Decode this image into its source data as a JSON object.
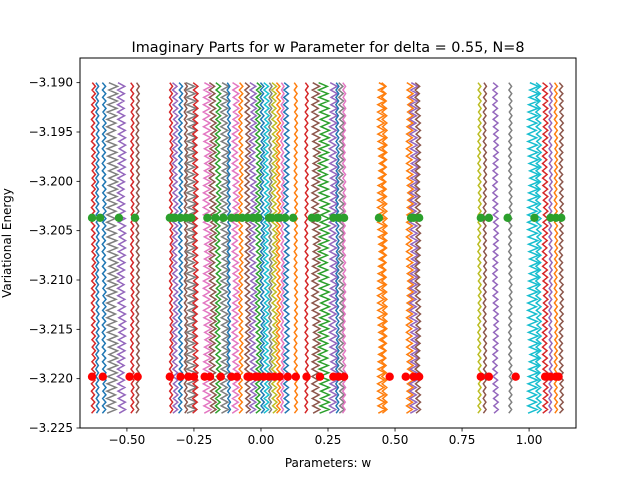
{
  "chart_data": {
    "type": "line",
    "title": "Imaginary Parts for w Parameter for delta = 0.55, N=8",
    "xlabel": "Parameters: w",
    "ylabel": "Variational Energy",
    "xlim": [
      -0.675,
      1.175
    ],
    "ylim": [
      -3.225,
      -3.1875
    ],
    "x_ticks": [
      -0.5,
      -0.25,
      0.0,
      0.25,
      0.5,
      0.75,
      1.0
    ],
    "x_tick_labels": [
      "−0.50",
      "−0.25",
      "0.00",
      "0.25",
      "0.50",
      "0.75",
      "1.00"
    ],
    "y_ticks": [
      -3.19,
      -3.195,
      -3.2,
      -3.205,
      -3.21,
      -3.215,
      -3.22,
      -3.225
    ],
    "y_tick_labels": [
      "−3.190",
      "−3.195",
      "−3.200",
      "−3.205",
      "−3.210",
      "−3.215",
      "−3.220",
      "−3.225"
    ],
    "grid": false,
    "palette": [
      "#1f77b4",
      "#ff7f0e",
      "#2ca02c",
      "#d62728",
      "#9467bd",
      "#8c564b",
      "#e377c2",
      "#7f7f7f",
      "#bcbd22",
      "#17becf"
    ],
    "band_y_range": [
      -3.2235,
      -3.19
    ],
    "band_centers": [
      -0.625,
      -0.61,
      -0.585,
      -0.555,
      -0.52,
      -0.48,
      -0.46,
      -0.335,
      -0.32,
      -0.3,
      -0.28,
      -0.26,
      -0.245,
      -0.2,
      -0.18,
      -0.16,
      -0.135,
      -0.12,
      -0.095,
      -0.075,
      -0.05,
      -0.03,
      -0.01,
      0.005,
      0.02,
      0.035,
      0.05,
      0.065,
      0.08,
      0.095,
      0.13,
      0.17,
      0.205,
      0.235,
      0.27,
      0.285,
      0.3,
      0.31,
      0.45,
      0.46,
      0.555,
      0.57,
      0.585,
      0.815,
      0.835,
      0.875,
      0.93,
      1.015,
      1.035,
      1.06,
      1.08,
      1.1,
      1.12
    ],
    "band_widths": [
      0.015,
      0.012,
      0.014,
      0.04,
      0.03,
      0.012,
      0.012,
      0.012,
      0.02,
      0.015,
      0.012,
      0.04,
      0.02,
      0.03,
      0.025,
      0.02,
      0.03,
      0.012,
      0.025,
      0.015,
      0.02,
      0.025,
      0.02,
      0.015,
      0.02,
      0.012,
      0.02,
      0.015,
      0.012,
      0.02,
      0.012,
      0.012,
      0.03,
      0.04,
      0.03,
      0.012,
      0.02,
      0.012,
      0.03,
      0.02,
      0.025,
      0.03,
      0.02,
      0.012,
      0.012,
      0.02,
      0.012,
      0.04,
      0.02,
      0.02,
      0.012,
      0.012,
      0.015
    ],
    "band_colors": [
      "#d62728",
      "#1f77b4",
      "#1f77b4",
      "#7f7f7f",
      "#9467bd",
      "#d62728",
      "#8c564b",
      "#d62728",
      "#9467bd",
      "#1f77b4",
      "#8c564b",
      "#7f7f7f",
      "#d62728",
      "#e377c2",
      "#8c564b",
      "#2ca02c",
      "#7f7f7f",
      "#1f77b4",
      "#e377c2",
      "#ff7f0e",
      "#8c564b",
      "#9467bd",
      "#2ca02c",
      "#1f77b4",
      "#17becf",
      "#7f7f7f",
      "#bcbd22",
      "#ff7f0e",
      "#e377c2",
      "#1f77b4",
      "#ff7f0e",
      "#d62728",
      "#8c564b",
      "#2ca02c",
      "#9467bd",
      "#1f77b4",
      "#7f7f7f",
      "#e377c2",
      "#ff7f0e",
      "#ff7f0e",
      "#ff7f0e",
      "#9467bd",
      "#8c564b",
      "#bcbd22",
      "#8c564b",
      "#9467bd",
      "#7f7f7f",
      "#17becf",
      "#17becf",
      "#d62728",
      "#9467bd",
      "#ff7f0e",
      "#8c564b"
    ],
    "series": [
      {
        "color": "#2ca02c",
        "y": -3.2037,
        "x": [
          -0.63,
          -0.6,
          -0.53,
          -0.47,
          -0.34,
          -0.33,
          -0.32,
          -0.3,
          -0.28,
          -0.26,
          -0.2,
          -0.17,
          -0.14,
          -0.11,
          -0.09,
          -0.07,
          -0.05,
          -0.03,
          -0.01,
          0.03,
          0.04,
          0.06,
          0.07,
          0.09,
          0.12,
          0.19,
          0.21,
          0.27,
          0.29,
          0.31,
          0.44,
          0.56,
          0.57,
          0.59,
          0.82,
          0.85,
          0.92,
          1.02,
          1.08,
          1.1,
          1.12
        ]
      },
      {
        "color": "#ff0000",
        "y": -3.2198,
        "x": [
          -0.63,
          -0.59,
          -0.49,
          -0.46,
          -0.34,
          -0.3,
          -0.27,
          -0.25,
          -0.21,
          -0.19,
          -0.15,
          -0.11,
          -0.09,
          -0.05,
          -0.04,
          -0.02,
          -0.01,
          0.01,
          0.03,
          0.05,
          0.07,
          0.1,
          0.13,
          0.17,
          0.22,
          0.27,
          0.29,
          0.31,
          0.48,
          0.54,
          0.57,
          0.59,
          0.82,
          0.85,
          0.95,
          1.06,
          1.08,
          1.1,
          1.11
        ]
      }
    ]
  }
}
